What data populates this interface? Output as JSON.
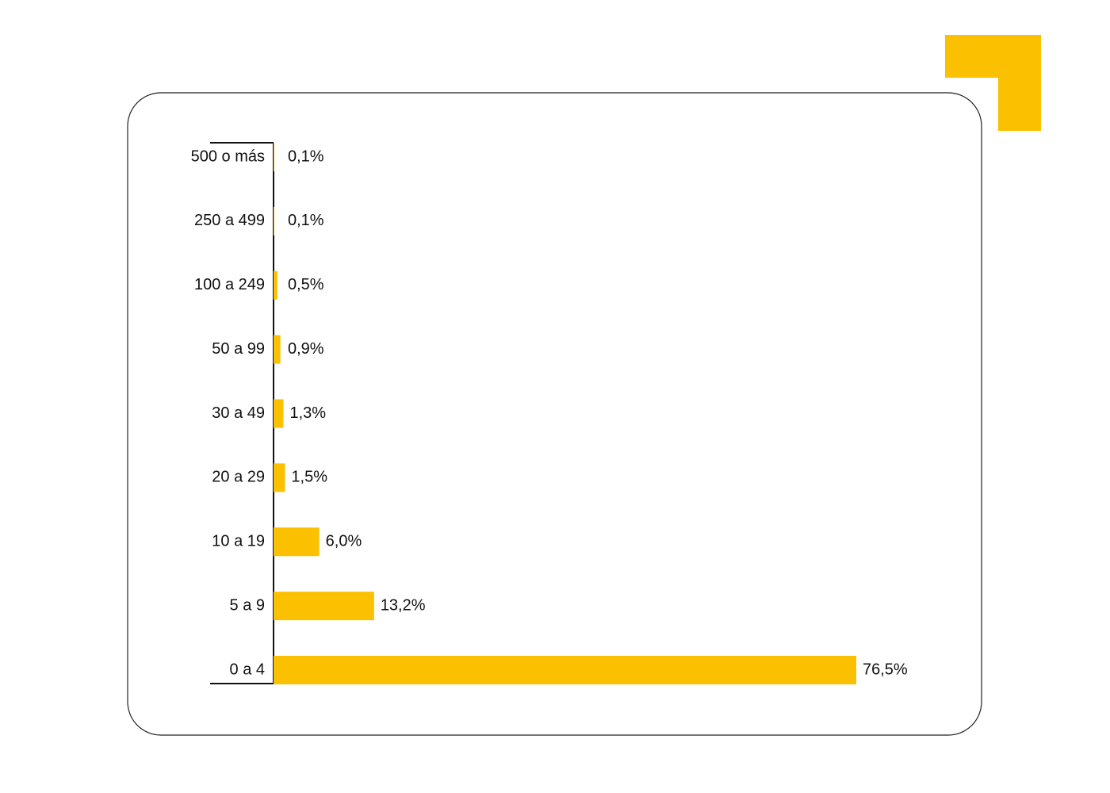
{
  "chart_data": {
    "type": "barh",
    "categories": [
      "500 o más",
      "250 a 499",
      "100 a 249",
      "50 a 99",
      "30 a 49",
      "20 a 29",
      "10 a 19",
      "5 a 9",
      "0 a 4"
    ],
    "values": [
      0.1,
      0.1,
      0.5,
      0.9,
      1.3,
      1.5,
      6.0,
      13.2,
      76.5
    ],
    "value_labels": [
      "0,1%",
      "0,1%",
      "0,5%",
      "0,9%",
      "1,3%",
      "1,5%",
      "6,0%",
      "13,2%",
      "76,5%"
    ],
    "color": "#fbc100"
  }
}
